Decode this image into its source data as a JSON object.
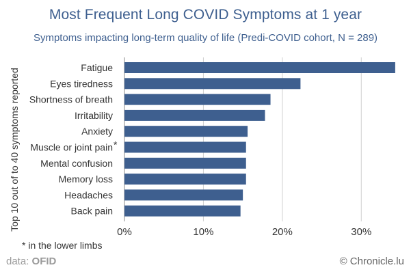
{
  "chart_data": {
    "type": "bar",
    "orientation": "horizontal",
    "title": "Most Frequent Long COVID Symptoms at 1 year",
    "subtitle": "Symptoms impacting long-term quality of life (Predi-COVID cohort, N = 289)",
    "ylabel": "Top 10 out of to 40 symptoms reported",
    "xlabel": "",
    "categories": [
      "Fatigue",
      "Eyes tiredness",
      "Shortness of breath",
      "Irritability",
      "Anxiety",
      "Muscle or joint pain",
      "Mental confusion",
      "Memory loss",
      "Headaches",
      "Back pain"
    ],
    "category_marks": [
      "",
      "",
      "",
      "",
      "",
      "*",
      "",
      "",
      "",
      ""
    ],
    "values": [
      34.3,
      22.3,
      18.5,
      17.8,
      15.6,
      15.4,
      15.4,
      15.4,
      15.0,
      14.7
    ],
    "xlim": [
      0,
      35
    ],
    "xticks": [
      0,
      10,
      20,
      30
    ],
    "xtick_labels": [
      "0%",
      "10%",
      "20%",
      "30%"
    ],
    "grid": true,
    "bar_color": "#3e5f8f",
    "grid_color": "#cfcfcf"
  },
  "footnote": "* in the lower limbs",
  "source": {
    "prefix": "data: ",
    "name": "OFID"
  },
  "credit": "© Chronicle.lu"
}
